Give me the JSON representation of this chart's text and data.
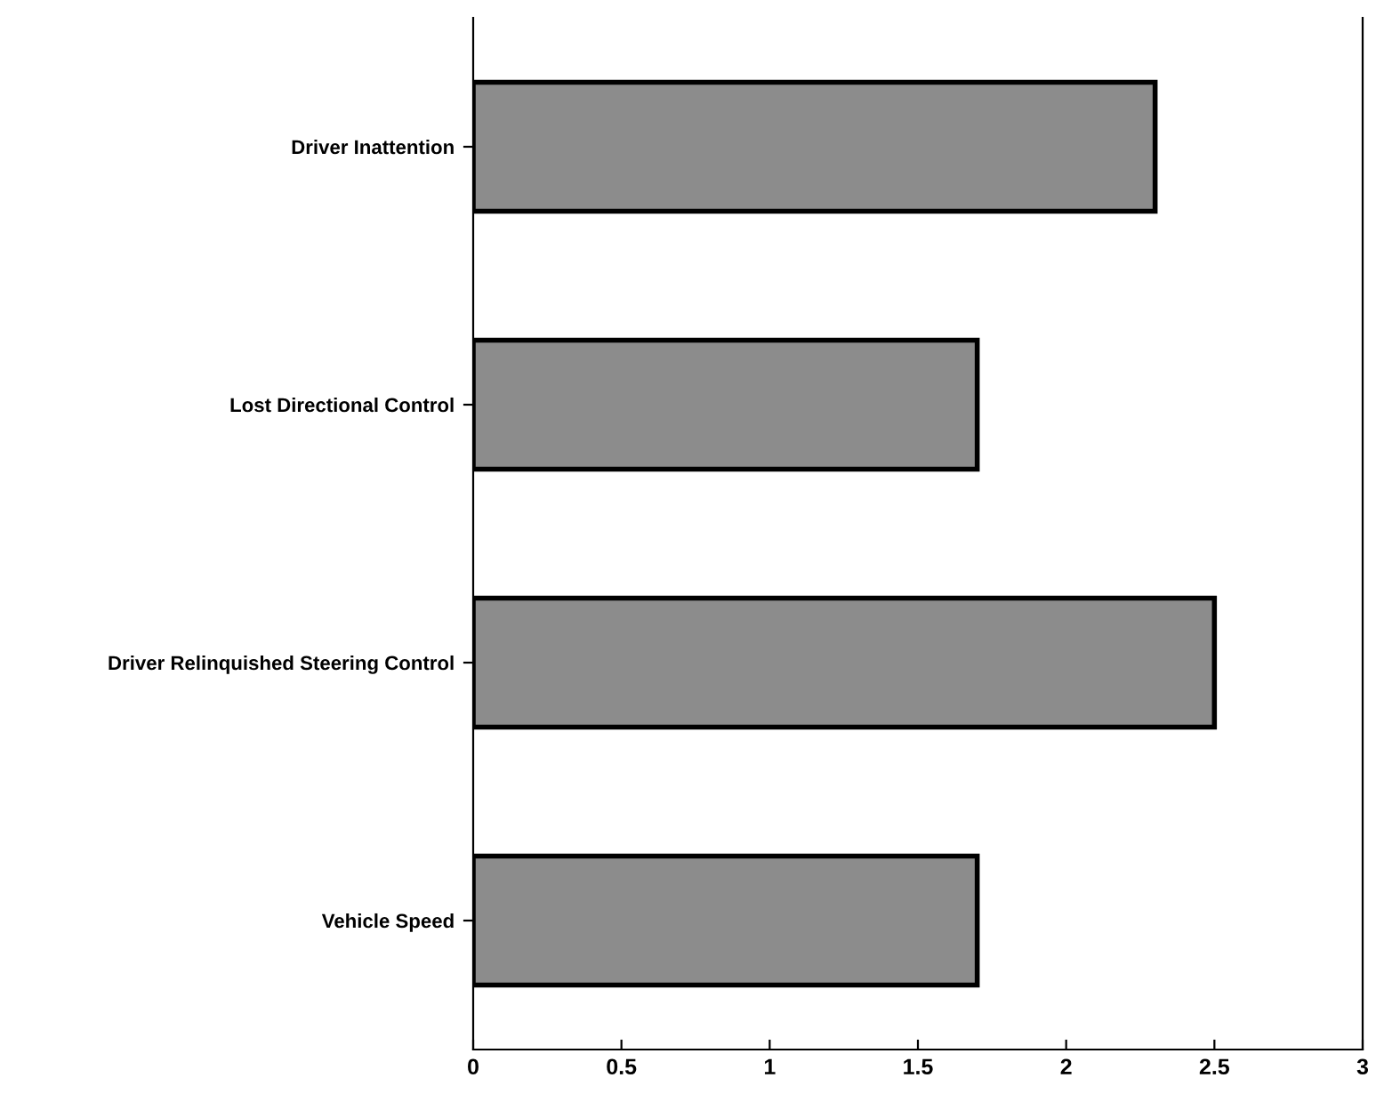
{
  "chart_data": {
    "type": "bar",
    "orientation": "horizontal",
    "categories": [
      "Driver Inattention",
      "Lost Directional Control",
      "Driver Relinquished Steering Control",
      "Vehicle Speed"
    ],
    "values": [
      2.3,
      1.7,
      2.5,
      1.7
    ],
    "color": "#8c8c8c",
    "xlim": [
      0,
      3
    ],
    "xticks": [
      0,
      0.5,
      1,
      1.5,
      2,
      2.5,
      3
    ],
    "grid": false,
    "legend": false
  }
}
